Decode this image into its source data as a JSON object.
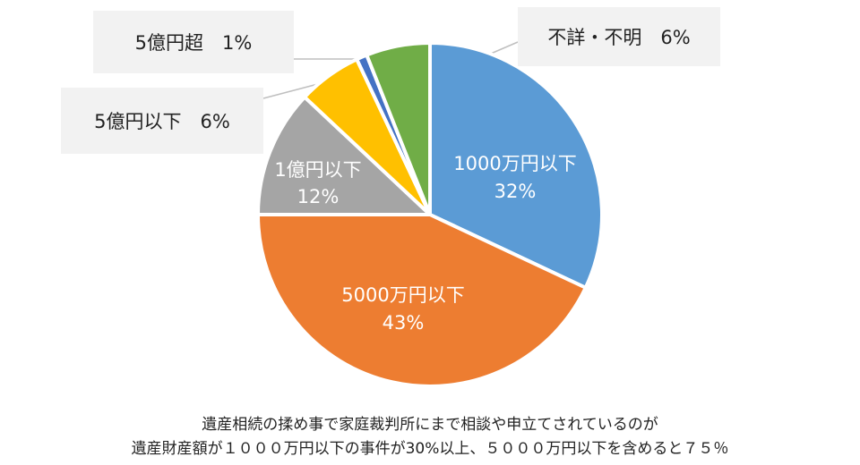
{
  "chart_data": {
    "type": "pie",
    "slices": [
      {
        "label": "1000万円以下",
        "value": 32,
        "value_text": "32%",
        "color": "#5b9bd5"
      },
      {
        "label": "5000万円以下",
        "value": 43,
        "value_text": "43%",
        "color": "#ed7d31"
      },
      {
        "label": "1億円以下",
        "value": 12,
        "value_text": "12%",
        "color": "#a5a5a5"
      },
      {
        "label": "5億円以下",
        "value": 6,
        "value_text": "6%",
        "color": "#ffc000"
      },
      {
        "label": "5億円超",
        "value": 1,
        "value_text": "1%",
        "color": "#4472c4"
      },
      {
        "label": "不詳・不明",
        "value": 6,
        "value_text": "6%",
        "color": "#70ad47"
      }
    ],
    "callouts": {
      "oku5_cho": "5億円超　1%",
      "fusho": "不詳・不明　6%",
      "oku5_ika": "5億円以下　6%"
    }
  },
  "caption": {
    "line1": "遺産相続の揉め事で家庭裁判所にまで相談や申立てされているのが",
    "line2": "遺産財産額が１０００万円以下の事件が30%以上、５０００万円以下を含めると７５％"
  }
}
